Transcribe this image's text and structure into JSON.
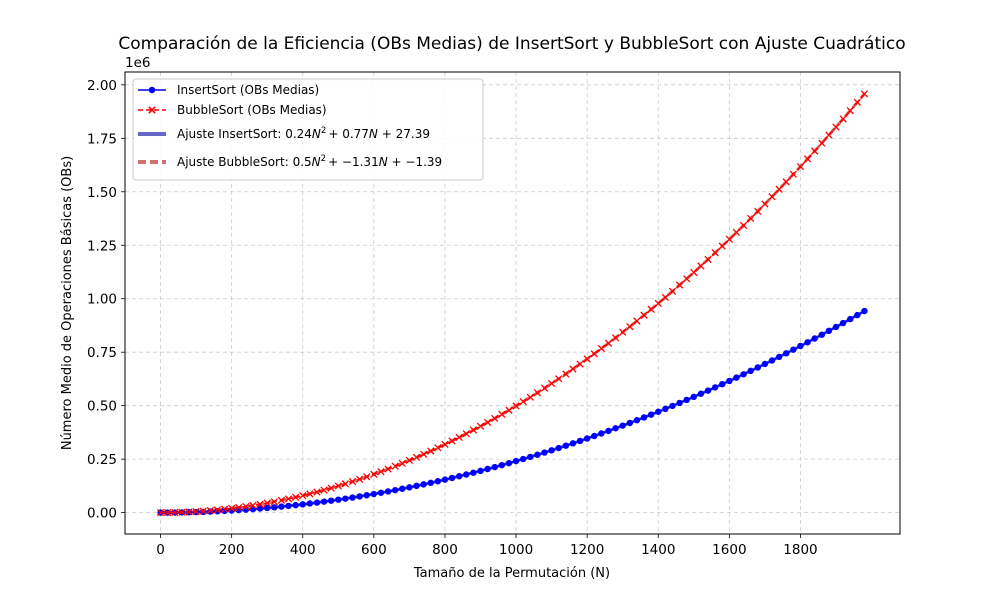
{
  "chart_data": {
    "type": "line",
    "title": "Comparación de la Eficiencia (OBs Medias) de InsertSort y BubbleSort con Ajuste Cuadrático",
    "xlabel": "Tamaño de la Permutación (N)",
    "ylabel": "Número Medio de Operaciones Básicas (OBs)",
    "y_offset_label": "1e6",
    "xlim": [
      -100,
      2080
    ],
    "ylim": [
      -0.1,
      2.06
    ],
    "y_scale": 1000000,
    "x_ticks": [
      0,
      200,
      400,
      600,
      800,
      1000,
      1200,
      1400,
      1600,
      1800
    ],
    "x_tick_labels": [
      "0",
      "200",
      "400",
      "600",
      "800",
      "1000",
      "1200",
      "1400",
      "1600",
      "1800"
    ],
    "y_ticks": [
      0,
      0.25,
      0.5,
      0.75,
      1.0,
      1.25,
      1.5,
      1.75,
      2.0
    ],
    "y_tick_labels": [
      "0.00",
      "0.25",
      "0.50",
      "0.75",
      "1.00",
      "1.25",
      "1.50",
      "1.75",
      "2.00"
    ],
    "grid": true,
    "legend_position": "top-left",
    "x_range": {
      "start": 0,
      "stop": 1980,
      "step": 20
    },
    "series": [
      {
        "name": "InsertSort (OBs Medias)",
        "kind": "data",
        "marker": "circle",
        "color": "#0000ff",
        "fit": [
          0.24,
          0.77,
          27.39
        ]
      },
      {
        "name": "BubbleSort (OBs Medias)",
        "kind": "data",
        "marker": "x",
        "color": "#ff0000",
        "fit": [
          0.5,
          -1.31,
          -1.39
        ]
      },
      {
        "name_prefix": "Ajuste InsertSort:",
        "name_formula": [
          "0.24",
          "N",
          "2",
          "+ 0.77",
          "N",
          "+ 27.39"
        ],
        "kind": "fit",
        "color": "#0000a0",
        "coef": [
          0.24,
          0.77,
          27.39
        ]
      },
      {
        "name_prefix": "Ajuste BubbleSort:",
        "name_formula": [
          "0.5",
          "N",
          "2",
          "+ −1.31",
          "N",
          "+ −1.39"
        ],
        "kind": "fit",
        "color": "#b01010",
        "coef": [
          0.5,
          -1.31,
          -1.39
        ]
      }
    ]
  }
}
